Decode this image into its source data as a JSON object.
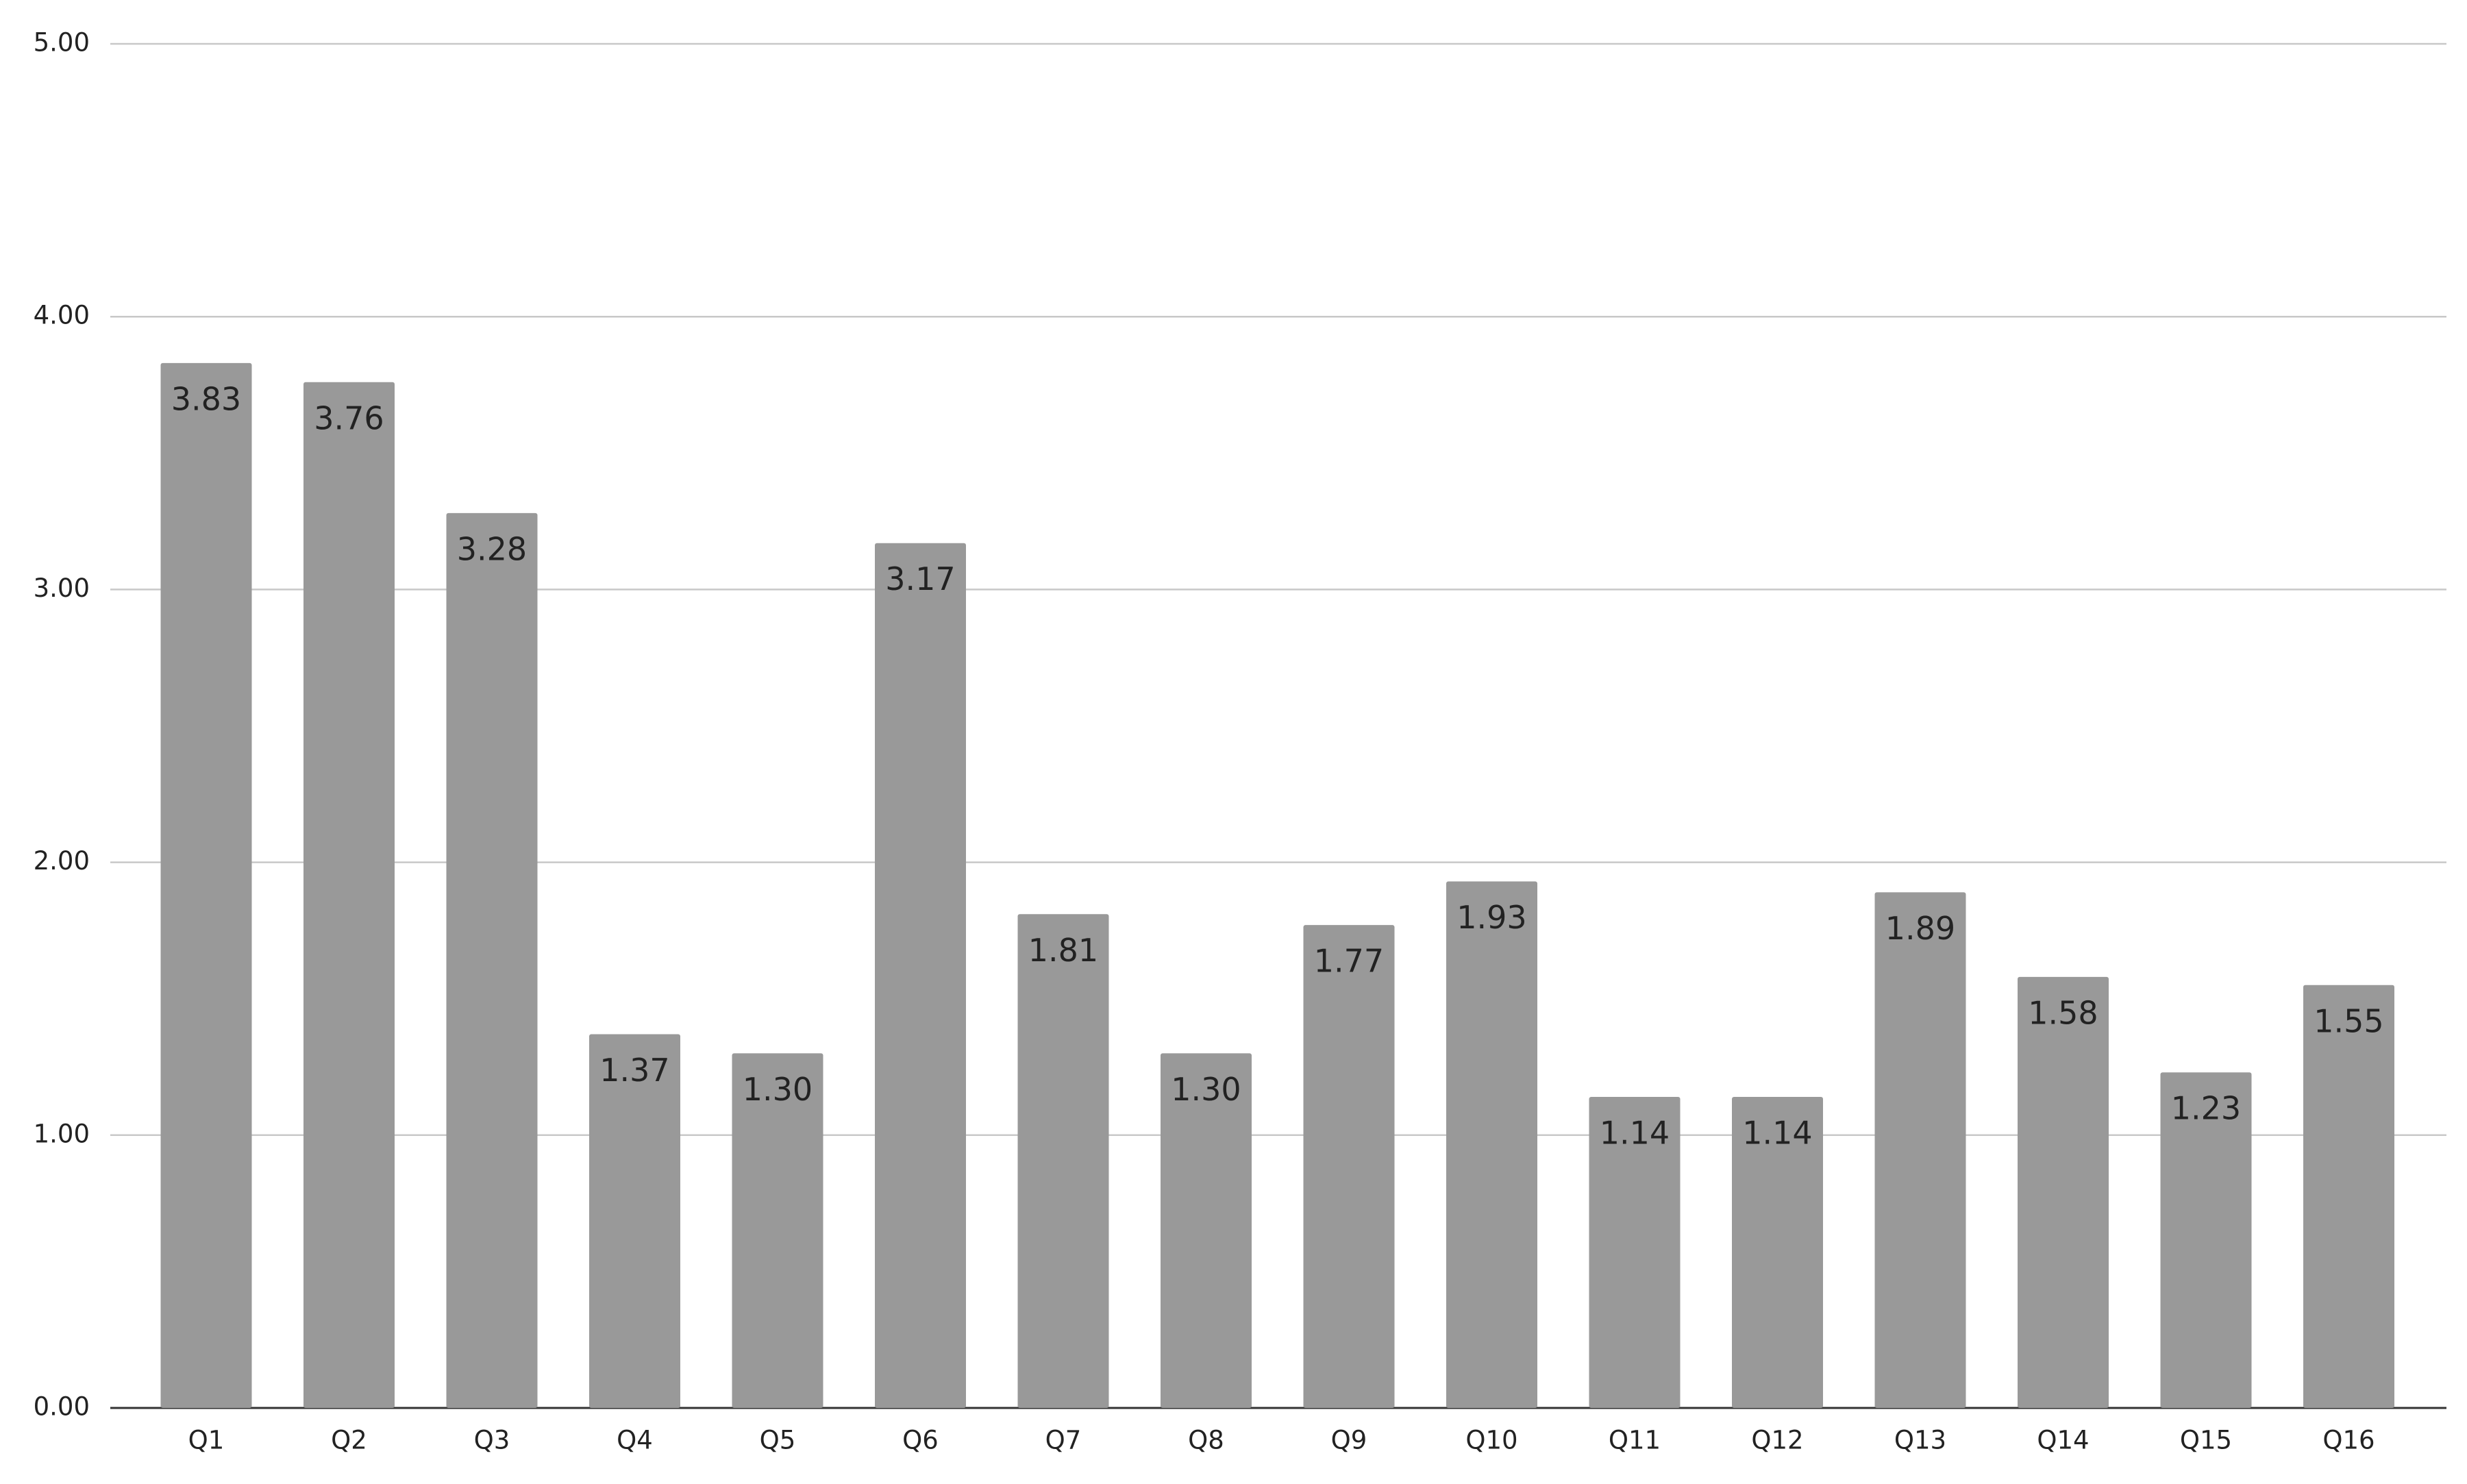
{
  "chart_data": {
    "type": "bar",
    "categories": [
      "Q1",
      "Q2",
      "Q3",
      "Q4",
      "Q5",
      "Q6",
      "Q7",
      "Q8",
      "Q9",
      "Q10",
      "Q11",
      "Q12",
      "Q13",
      "Q14",
      "Q15",
      "Q16"
    ],
    "values": [
      3.83,
      3.76,
      3.28,
      1.37,
      1.3,
      3.17,
      1.81,
      1.3,
      1.77,
      1.93,
      1.14,
      1.14,
      1.89,
      1.58,
      1.23,
      1.55
    ],
    "value_labels": [
      "3.83",
      "3.76",
      "3.28",
      "1.37",
      "1.30",
      "3.17",
      "1.81",
      "1.30",
      "1.77",
      "1.93",
      "1.14",
      "1.14",
      "1.89",
      "1.58",
      "1.23",
      "1.55"
    ],
    "color": "#999999",
    "ylim": [
      0,
      5
    ],
    "yticks": [
      {
        "value": 0,
        "label": "0.00"
      },
      {
        "value": 1,
        "label": "1.00"
      },
      {
        "value": 2,
        "label": "2.00"
      },
      {
        "value": 3,
        "label": "3.00"
      },
      {
        "value": 4,
        "label": "4.00"
      },
      {
        "value": 5,
        "label": "5.00"
      }
    ],
    "grid": true
  }
}
